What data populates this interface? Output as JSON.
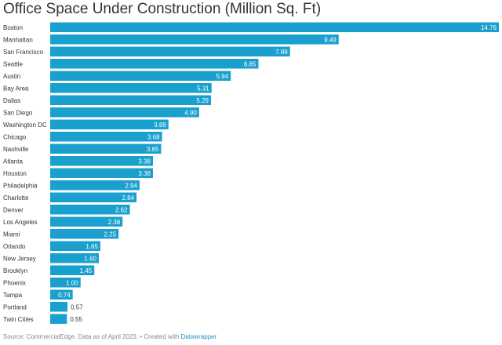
{
  "title": "Office Space Under Construction (Million Sq. Ft)",
  "source": {
    "text": "Source: CommercialEdge. Data as of April 2023. • Created with",
    "brand": "Datawrapper"
  },
  "colors": {
    "bar": "#1aa0cf",
    "label_inside": "#ffffff",
    "label_outside": "#333333",
    "text": "#333333",
    "source": "#888888",
    "brand": "#2a8ec2"
  },
  "chart_data": {
    "type": "bar",
    "orientation": "horizontal",
    "categories": [
      "Boston",
      "Manhattan",
      "San Francisco",
      "Seattle",
      "Austin",
      "Bay Area",
      "Dallas",
      "San Diego",
      "Washington DC",
      "Chicago",
      "Nashville",
      "Atlanta",
      "Houston",
      "Philadelphia",
      "Charlotte",
      "Denver",
      "Los Angeles",
      "Miami",
      "Orlando",
      "New Jersey",
      "Brooklyn",
      "Phoenix",
      "Tampa",
      "Portland",
      "Twin Cities"
    ],
    "values": [
      14.76,
      9.49,
      7.89,
      6.85,
      5.94,
      5.31,
      5.29,
      4.9,
      3.89,
      3.68,
      3.65,
      3.38,
      3.38,
      2.94,
      2.84,
      2.62,
      2.38,
      2.25,
      1.65,
      1.6,
      1.45,
      1.0,
      0.74,
      0.57,
      0.55
    ],
    "value_labels": [
      "14.76",
      "9.49",
      "7.89",
      "6.85",
      "5.94",
      "5.31",
      "5.29",
      "4.90",
      "3.89",
      "3.68",
      "3.65",
      "3.38",
      "3.38",
      "2.94",
      "2.84",
      "2.62",
      "2.38",
      "2.25",
      "1.65",
      "1.60",
      "1.45",
      "1.00",
      "0.74",
      "0.57",
      "0.55"
    ],
    "xlim": [
      0,
      14.76
    ],
    "grid": false,
    "legend": "none"
  }
}
